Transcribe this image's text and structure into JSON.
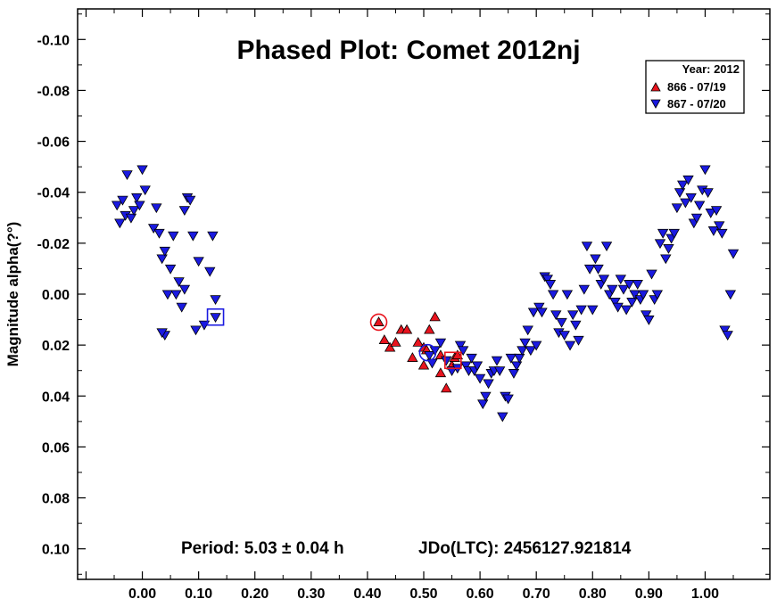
{
  "chart_data": {
    "type": "scatter",
    "title": "Phased Plot: Comet 2012nj",
    "xlabel": "",
    "ylabel": "Magnitude alpha(?°)",
    "xlim": [
      -0.115,
      1.115
    ],
    "ylim": [
      -0.112,
      0.112
    ],
    "y_inverted": true,
    "x_ticks": [
      0.0,
      0.1,
      0.2,
      0.3,
      0.4,
      0.5,
      0.6,
      0.7,
      0.8,
      0.9,
      1.0
    ],
    "x_tick_labels": [
      "0.00",
      "0.10",
      "0.20",
      "0.30",
      "0.40",
      "0.50",
      "0.60",
      "0.70",
      "0.80",
      "0.90",
      "1.00"
    ],
    "y_ticks": [
      -0.1,
      -0.08,
      -0.06,
      -0.04,
      -0.02,
      0.0,
      0.02,
      0.04,
      0.06,
      0.08,
      0.1
    ],
    "y_tick_labels": [
      "-0.10",
      "-0.08",
      "-0.06",
      "-0.04",
      "-0.02",
      "0.00",
      "0.02",
      "0.04",
      "0.06",
      "0.08",
      "0.10"
    ],
    "grid": false,
    "legend": {
      "title": "Year: 2012",
      "position": "top-right"
    },
    "annotations": {
      "period": "Period: 5.03 ± 0.04 h",
      "epoch": "JDo(LTC): 2456127.921814"
    },
    "series": [
      {
        "name": "866 - 07/19",
        "marker": "triangle-up",
        "color": "#e8141e",
        "points": [
          [
            0.42,
            0.011
          ],
          [
            0.43,
            0.018
          ],
          [
            0.44,
            0.021
          ],
          [
            0.45,
            0.019
          ],
          [
            0.46,
            0.014
          ],
          [
            0.47,
            0.014
          ],
          [
            0.48,
            0.025
          ],
          [
            0.49,
            0.019
          ],
          [
            0.5,
            0.021
          ],
          [
            0.5,
            0.028
          ],
          [
            0.51,
            0.014
          ],
          [
            0.52,
            0.009
          ],
          [
            0.53,
            0.024
          ],
          [
            0.53,
            0.031
          ],
          [
            0.54,
            0.037
          ],
          [
            0.55,
            0.028
          ],
          [
            0.555,
            0.025
          ],
          [
            0.56,
            0.024
          ],
          [
            0.505,
            0.022
          ]
        ]
      },
      {
        "name": "867 - 07/20",
        "marker": "triangle-down",
        "color": "#1a1ae0",
        "points": [
          [
            -0.045,
            -0.035
          ],
          [
            -0.04,
            -0.028
          ],
          [
            -0.035,
            -0.037
          ],
          [
            -0.03,
            -0.031
          ],
          [
            -0.027,
            -0.047
          ],
          [
            -0.02,
            -0.03
          ],
          [
            -0.015,
            -0.033
          ],
          [
            -0.01,
            -0.038
          ],
          [
            -0.005,
            -0.035
          ],
          [
            0.0,
            -0.049
          ],
          [
            0.005,
            -0.041
          ],
          [
            0.02,
            -0.026
          ],
          [
            0.025,
            -0.034
          ],
          [
            0.03,
            -0.024
          ],
          [
            0.035,
            -0.014
          ],
          [
            0.04,
            -0.017
          ],
          [
            0.045,
            0.0
          ],
          [
            0.05,
            -0.01
          ],
          [
            0.055,
            -0.023
          ],
          [
            0.06,
            0.0
          ],
          [
            0.065,
            -0.005
          ],
          [
            0.07,
            0.005
          ],
          [
            0.075,
            -0.002
          ],
          [
            0.08,
            -0.038
          ],
          [
            0.085,
            -0.037
          ],
          [
            0.09,
            -0.023
          ],
          [
            0.095,
            0.014
          ],
          [
            0.1,
            -0.013
          ],
          [
            0.11,
            0.012
          ],
          [
            0.12,
            -0.009
          ],
          [
            0.125,
            -0.023
          ],
          [
            0.13,
            0.002
          ],
          [
            0.13,
            0.009
          ],
          [
            0.04,
            0.016
          ],
          [
            0.035,
            0.015
          ],
          [
            0.075,
            -0.033
          ],
          [
            0.51,
            0.024
          ],
          [
            0.515,
            0.027
          ],
          [
            0.52,
            0.022
          ],
          [
            0.53,
            0.019
          ],
          [
            0.54,
            0.026
          ],
          [
            0.55,
            0.03
          ],
          [
            0.56,
            0.029
          ],
          [
            0.565,
            0.02
          ],
          [
            0.57,
            0.022
          ],
          [
            0.575,
            0.028
          ],
          [
            0.58,
            0.03
          ],
          [
            0.585,
            0.025
          ],
          [
            0.59,
            0.03
          ],
          [
            0.595,
            0.028
          ],
          [
            0.6,
            0.033
          ],
          [
            0.605,
            0.043
          ],
          [
            0.61,
            0.04
          ],
          [
            0.615,
            0.035
          ],
          [
            0.62,
            0.031
          ],
          [
            0.625,
            0.03
          ],
          [
            0.63,
            0.026
          ],
          [
            0.635,
            0.03
          ],
          [
            0.64,
            0.048
          ],
          [
            0.645,
            0.04
          ],
          [
            0.65,
            0.041
          ],
          [
            0.655,
            0.025
          ],
          [
            0.66,
            0.031
          ],
          [
            0.665,
            0.028
          ],
          [
            0.67,
            0.025
          ],
          [
            0.675,
            0.022
          ],
          [
            0.68,
            0.019
          ],
          [
            0.685,
            0.014
          ],
          [
            0.69,
            0.022
          ],
          [
            0.695,
            0.007
          ],
          [
            0.7,
            0.02
          ],
          [
            0.705,
            0.005
          ],
          [
            0.71,
            0.007
          ],
          [
            0.715,
            -0.007
          ],
          [
            0.72,
            -0.006
          ],
          [
            0.725,
            -0.004
          ],
          [
            0.73,
            0.0
          ],
          [
            0.735,
            0.008
          ],
          [
            0.74,
            0.015
          ],
          [
            0.745,
            0.011
          ],
          [
            0.75,
            0.016
          ],
          [
            0.755,
            0.0
          ],
          [
            0.76,
            0.02
          ],
          [
            0.765,
            0.008
          ],
          [
            0.77,
            0.012
          ],
          [
            0.775,
            0.018
          ],
          [
            0.78,
            0.006
          ],
          [
            0.785,
            -0.002
          ],
          [
            0.79,
            -0.019
          ],
          [
            0.795,
            -0.01
          ],
          [
            0.8,
            0.006
          ],
          [
            0.805,
            -0.014
          ],
          [
            0.81,
            -0.01
          ],
          [
            0.815,
            -0.004
          ],
          [
            0.82,
            -0.006
          ],
          [
            0.825,
            -0.019
          ],
          [
            0.83,
            0.0
          ],
          [
            0.835,
            -0.002
          ],
          [
            0.84,
            0.003
          ],
          [
            0.845,
            0.005
          ],
          [
            0.85,
            -0.006
          ],
          [
            0.855,
            -0.002
          ],
          [
            0.86,
            0.006
          ],
          [
            0.865,
            -0.004
          ],
          [
            0.87,
            0.003
          ],
          [
            0.875,
            0.0
          ],
          [
            0.88,
            -0.004
          ],
          [
            0.885,
            0.002
          ],
          [
            0.89,
            0.0
          ],
          [
            0.895,
            0.008
          ],
          [
            0.9,
            0.01
          ],
          [
            0.905,
            -0.008
          ],
          [
            0.91,
            0.002
          ],
          [
            0.915,
            0.0
          ],
          [
            0.92,
            -0.02
          ],
          [
            0.925,
            -0.024
          ],
          [
            0.93,
            -0.014
          ],
          [
            0.935,
            -0.018
          ],
          [
            0.94,
            -0.022
          ],
          [
            0.945,
            -0.024
          ],
          [
            0.95,
            -0.034
          ],
          [
            0.955,
            -0.04
          ],
          [
            0.96,
            -0.043
          ],
          [
            0.965,
            -0.036
          ],
          [
            0.97,
            -0.045
          ],
          [
            0.975,
            -0.038
          ],
          [
            0.98,
            -0.028
          ],
          [
            0.985,
            -0.03
          ],
          [
            0.99,
            -0.035
          ],
          [
            0.995,
            -0.041
          ],
          [
            1.0,
            -0.049
          ],
          [
            1.005,
            -0.04
          ],
          [
            1.01,
            -0.032
          ],
          [
            1.015,
            -0.025
          ],
          [
            1.02,
            -0.033
          ],
          [
            1.025,
            -0.027
          ],
          [
            1.03,
            -0.024
          ],
          [
            1.035,
            0.014
          ],
          [
            1.04,
            0.016
          ],
          [
            1.045,
            0.0
          ],
          [
            1.05,
            -0.016
          ]
        ]
      }
    ],
    "markers": [
      {
        "shape": "circle",
        "color": "#e8141e",
        "x": 0.42,
        "y": 0.011
      },
      {
        "shape": "circle",
        "color": "#1a1ae0",
        "x": 0.507,
        "y": 0.023
      },
      {
        "shape": "square",
        "color": "#e8141e",
        "x": 0.552,
        "y": 0.026
      },
      {
        "shape": "square",
        "color": "#1a1ae0",
        "x": 0.13,
        "y": 0.009
      }
    ]
  }
}
